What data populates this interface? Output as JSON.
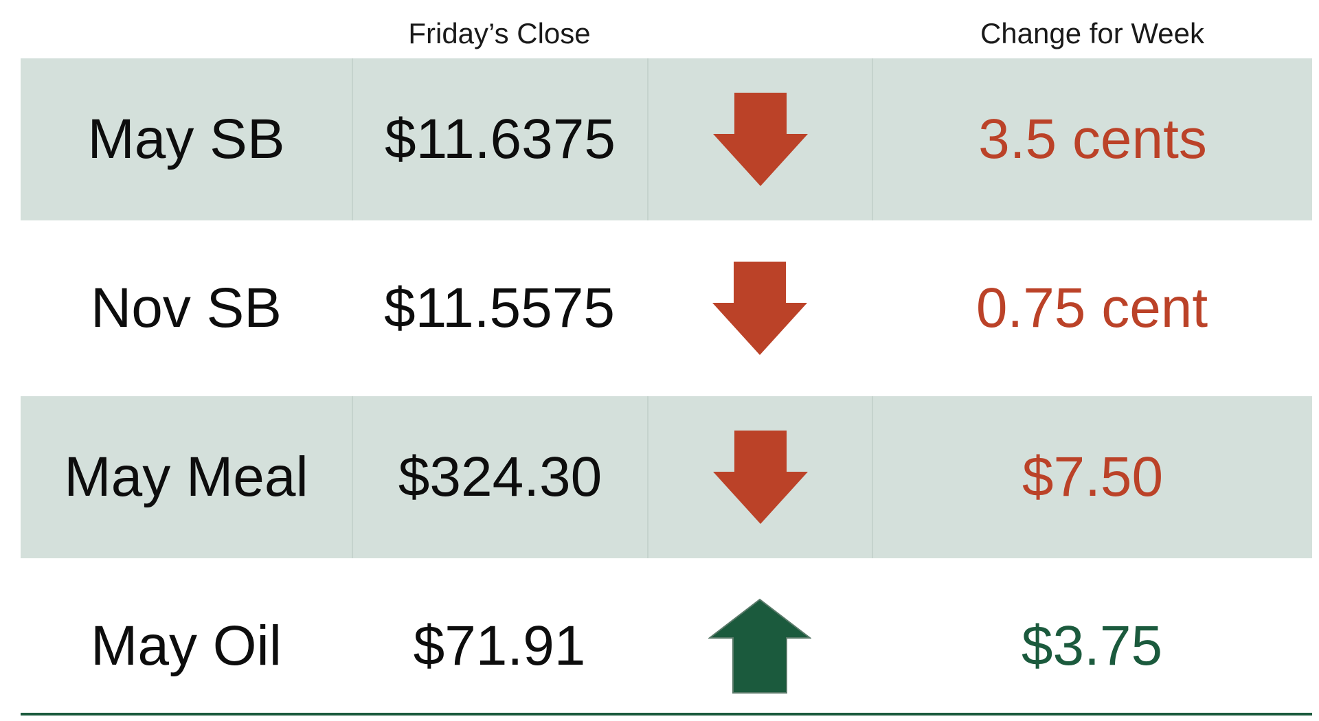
{
  "headers": {
    "close": "Friday’s Close",
    "change": "Change for Week"
  },
  "colors": {
    "down": "#bb4228",
    "up": "#1b5a3d",
    "shade": "#d4e0db"
  },
  "rows": [
    {
      "name": "May SB",
      "close": "$11.6375",
      "direction": "down",
      "arrow_icon": "down-arrow-icon",
      "change": "3.5 cents"
    },
    {
      "name": "Nov SB",
      "close": "$11.5575",
      "direction": "down",
      "arrow_icon": "down-arrow-icon",
      "change": "0.75 cent"
    },
    {
      "name": "May Meal",
      "close": "$324.30",
      "direction": "down",
      "arrow_icon": "down-arrow-icon",
      "change": "$7.50"
    },
    {
      "name": "May Oil",
      "close": "$71.91",
      "direction": "up",
      "arrow_icon": "up-arrow-icon",
      "change": "$3.75"
    }
  ]
}
